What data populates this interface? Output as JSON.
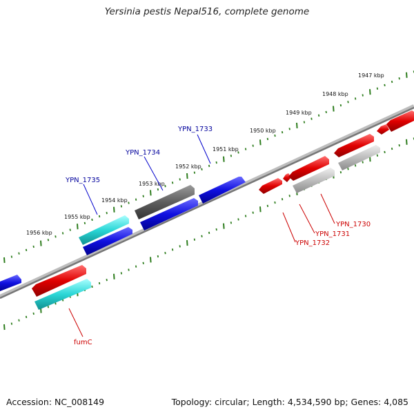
{
  "title": "Yersinia pestis Nepal516, complete genome",
  "accession": "Accession: NC_008149",
  "summary": "Topology: circular; Length: 4,534,590 bp; Genes: 4,085",
  "colors": {
    "backbone": "#888888",
    "tick": "#2e7d1e",
    "forward_gene": "#0b0bd8",
    "reverse_gene": "#e00000",
    "cyan_gene": "#27d3d3",
    "gray_gene": "#bdbdbd",
    "dark_gene": "#6a6a6a",
    "label_blue": "#00009c",
    "label_red": "#cc0000"
  },
  "scale_labels": [
    "1947 kbp",
    "1948 kbp",
    "1949 kbp",
    "1950 kbp",
    "1951 kbp",
    "1952 kbp",
    "1953 kbp",
    "1954 kbp",
    "1955 kbp",
    "1956 kbp"
  ],
  "gene_labels": [
    {
      "text": "YPN_1733",
      "color": "blue"
    },
    {
      "text": "YPN_1734",
      "color": "blue"
    },
    {
      "text": "YPN_1735",
      "color": "blue"
    },
    {
      "text": "YPN_1730",
      "color": "red"
    },
    {
      "text": "YPN_1731",
      "color": "red"
    },
    {
      "text": "YPN_1732",
      "color": "red"
    },
    {
      "text": "fumC",
      "color": "red"
    }
  ]
}
